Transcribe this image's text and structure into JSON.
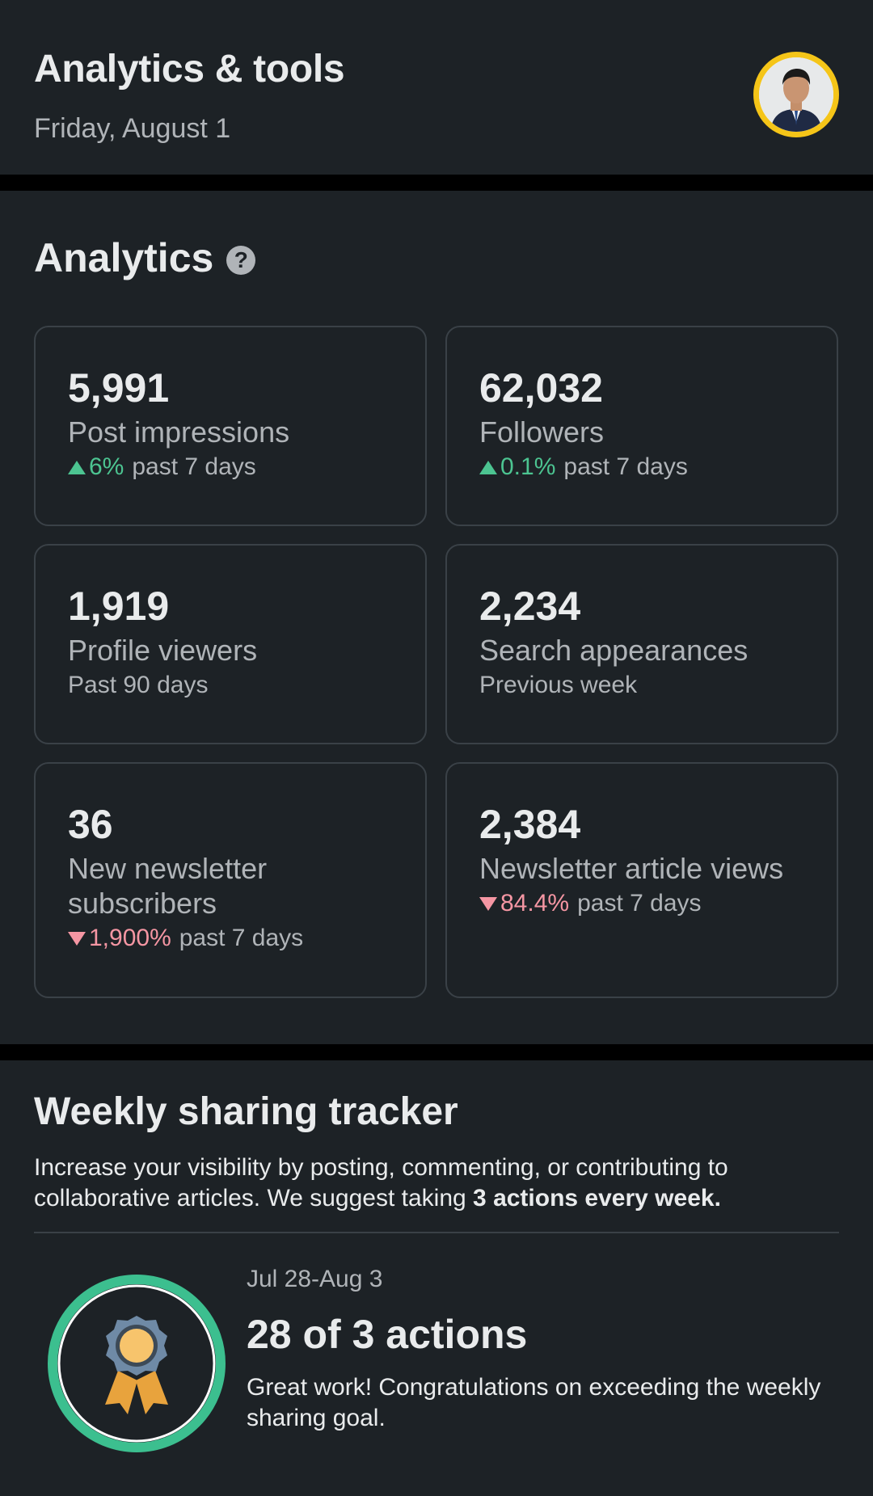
{
  "header": {
    "title": "Analytics & tools",
    "date": "Friday, August 1",
    "avatar_icon": "profile-avatar",
    "avatar_ring_color": "#f5c518"
  },
  "analytics": {
    "title": "Analytics",
    "help_icon": "question-circle-icon",
    "cards": [
      {
        "value": "5,991",
        "label": "Post impressions",
        "trend": "up",
        "change": "6%",
        "period": "past 7 days"
      },
      {
        "value": "62,032",
        "label": "Followers",
        "trend": "up",
        "change": "0.1%",
        "period": "past 7 days"
      },
      {
        "value": "1,919",
        "label": "Profile viewers",
        "period": "Past 90 days"
      },
      {
        "value": "2,234",
        "label": "Search appearances",
        "period": "Previous week"
      },
      {
        "value": "36",
        "label": "New newsletter subscribers",
        "trend": "down",
        "change": "1,900%",
        "period": "past 7 days"
      },
      {
        "value": "2,384",
        "label": "Newsletter article views",
        "trend": "down",
        "change": "84.4%",
        "period": "past 7 days"
      }
    ],
    "colors": {
      "positive": "#4cc491",
      "negative": "#f596a3"
    }
  },
  "weekly": {
    "title": "Weekly sharing tracker",
    "desc_prefix": "Increase your visibility by posting, commenting, or contributing to collaborative articles. We suggest taking ",
    "desc_bold": "3 actions every week.",
    "range": "Jul 28-Aug 3",
    "count": "28 of 3 actions",
    "message": "Great work! Congratulations on exceeding the weekly sharing goal.",
    "badge_icon": "award-ribbon-icon",
    "ring_color": "#3cbf8f"
  }
}
